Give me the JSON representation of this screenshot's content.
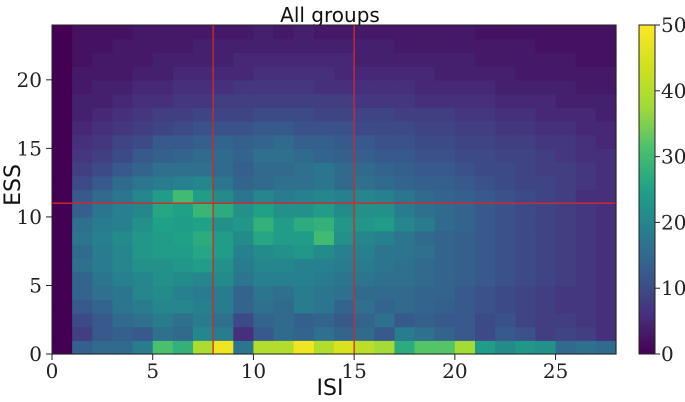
{
  "chart_data": {
    "type": "heatmap",
    "title": "All groups",
    "xlabel": "ISI",
    "ylabel": "ESS",
    "xlim": [
      0,
      28
    ],
    "ylim": [
      0,
      24
    ],
    "x_ticks": [
      "0",
      "5",
      "10",
      "15",
      "20",
      "25"
    ],
    "y_ticks": [
      "0",
      "5",
      "10",
      "15",
      "20"
    ],
    "colorbar": {
      "min": 0,
      "max": 50,
      "ticks": [
        "0",
        "10",
        "20",
        "30",
        "40",
        "50"
      ],
      "colormap": "viridis"
    },
    "reference_lines": {
      "vertical": [
        8,
        15
      ],
      "horizontal": [
        11
      ],
      "color": "#d62728"
    },
    "bin_width_x": 1,
    "bin_width_y": 1,
    "counts": [
      [
        0,
        13,
        15,
        15,
        18,
        31,
        28,
        39,
        48,
        17,
        40,
        40,
        48,
        40,
        45,
        41,
        38,
        27,
        32,
        32,
        38,
        24,
        21,
        23,
        22,
        15,
        16,
        15
      ],
      [
        0,
        8,
        12,
        13,
        12,
        16,
        15,
        20,
        18,
        6,
        12,
        15,
        14,
        16,
        14,
        15,
        12,
        18,
        16,
        14,
        12,
        10,
        12,
        11,
        8,
        9,
        8,
        6
      ],
      [
        0,
        10,
        12,
        15,
        16,
        18,
        16,
        18,
        16,
        10,
        14,
        15,
        13,
        14,
        12,
        14,
        16,
        12,
        13,
        12,
        12,
        10,
        11,
        9,
        8,
        8,
        7,
        6
      ],
      [
        0,
        12,
        14,
        17,
        18,
        20,
        20,
        19,
        18,
        14,
        16,
        15,
        18,
        17,
        14,
        16,
        14,
        15,
        14,
        13,
        12,
        11,
        10,
        9,
        8,
        7,
        7,
        6
      ],
      [
        0,
        14,
        16,
        17,
        20,
        21,
        19,
        18,
        18,
        14,
        17,
        16,
        18,
        17,
        16,
        15,
        15,
        15,
        14,
        14,
        12,
        11,
        10,
        9,
        8,
        7,
        7,
        6
      ],
      [
        0,
        14,
        17,
        19,
        20,
        22,
        21,
        20,
        21,
        17,
        19,
        19,
        19,
        18,
        17,
        17,
        16,
        16,
        15,
        14,
        13,
        12,
        11,
        10,
        9,
        8,
        7,
        6
      ],
      [
        0,
        16,
        18,
        20,
        22,
        22,
        23,
        24,
        22,
        18,
        20,
        20,
        19,
        19,
        18,
        18,
        17,
        16,
        15,
        14,
        13,
        12,
        11,
        10,
        9,
        8,
        7,
        6
      ],
      [
        0,
        15,
        18,
        20,
        23,
        24,
        24,
        26,
        24,
        19,
        21,
        22,
        23,
        21,
        19,
        19,
        17,
        17,
        16,
        14,
        13,
        12,
        11,
        10,
        9,
        8,
        7,
        6
      ],
      [
        0,
        17,
        19,
        21,
        23,
        24,
        25,
        27,
        24,
        21,
        26,
        24,
        24,
        30,
        22,
        20,
        19,
        17,
        15,
        14,
        13,
        12,
        11,
        10,
        9,
        8,
        7,
        6
      ],
      [
        0,
        16,
        18,
        19,
        22,
        25,
        24,
        25,
        22,
        23,
        28,
        24,
        27,
        28,
        23,
        23,
        24,
        20,
        18,
        15,
        14,
        12,
        11,
        10,
        9,
        8,
        7,
        6
      ],
      [
        0,
        13,
        17,
        19,
        20,
        26,
        25,
        29,
        27,
        22,
        25,
        22,
        22,
        24,
        21,
        22,
        22,
        18,
        16,
        15,
        14,
        12,
        11,
        10,
        9,
        8,
        7,
        6
      ],
      [
        0,
        12,
        15,
        17,
        20,
        24,
        30,
        24,
        21,
        17,
        20,
        18,
        19,
        20,
        19,
        20,
        19,
        17,
        15,
        14,
        13,
        12,
        11,
        10,
        9,
        8,
        6,
        6
      ],
      [
        0,
        10,
        12,
        15,
        17,
        18,
        19,
        20,
        17,
        14,
        15,
        16,
        16,
        17,
        15,
        16,
        15,
        14,
        13,
        13,
        12,
        11,
        10,
        9,
        9,
        8,
        7,
        6
      ],
      [
        0,
        8,
        10,
        12,
        14,
        16,
        16,
        16,
        15,
        13,
        15,
        15,
        16,
        17,
        15,
        15,
        14,
        13,
        12,
        12,
        11,
        10,
        10,
        9,
        8,
        8,
        7,
        6
      ],
      [
        0,
        7,
        8,
        10,
        12,
        13,
        14,
        15,
        15,
        14,
        16,
        16,
        15,
        14,
        13,
        13,
        12,
        12,
        11,
        11,
        10,
        10,
        9,
        9,
        8,
        7,
        6,
        6
      ],
      [
        0,
        6,
        7,
        9,
        10,
        12,
        12,
        13,
        14,
        13,
        14,
        15,
        13,
        13,
        12,
        12,
        11,
        11,
        10,
        10,
        9,
        9,
        8,
        8,
        7,
        7,
        6,
        5
      ],
      [
        0,
        5,
        6,
        7,
        8,
        9,
        10,
        11,
        11,
        11,
        12,
        12,
        11,
        11,
        11,
        10,
        10,
        10,
        9,
        9,
        8,
        8,
        7,
        7,
        6,
        6,
        5,
        5
      ],
      [
        0,
        4,
        5,
        6,
        7,
        8,
        8,
        9,
        9,
        9,
        10,
        10,
        10,
        9,
        9,
        9,
        9,
        8,
        8,
        8,
        7,
        7,
        6,
        6,
        5,
        5,
        5,
        4
      ],
      [
        0,
        4,
        4,
        5,
        6,
        6,
        7,
        7,
        8,
        8,
        8,
        8,
        8,
        8,
        8,
        7,
        7,
        7,
        6,
        6,
        6,
        6,
        5,
        5,
        5,
        4,
        4,
        4
      ],
      [
        0,
        3,
        4,
        4,
        5,
        5,
        6,
        6,
        6,
        7,
        7,
        7,
        7,
        6,
        6,
        6,
        6,
        6,
        5,
        5,
        5,
        5,
        4,
        4,
        4,
        4,
        3,
        3
      ],
      [
        0,
        3,
        3,
        3,
        4,
        4,
        5,
        5,
        5,
        5,
        6,
        6,
        6,
        6,
        5,
        5,
        5,
        5,
        5,
        4,
        4,
        4,
        4,
        3,
        3,
        3,
        3,
        3
      ],
      [
        0,
        2,
        3,
        3,
        3,
        4,
        4,
        4,
        4,
        5,
        5,
        5,
        5,
        5,
        5,
        4,
        4,
        4,
        4,
        4,
        4,
        3,
        3,
        3,
        3,
        3,
        2,
        2
      ],
      [
        0,
        2,
        2,
        3,
        3,
        3,
        3,
        4,
        4,
        4,
        4,
        4,
        4,
        4,
        4,
        4,
        4,
        3,
        3,
        3,
        3,
        3,
        3,
        3,
        2,
        2,
        2,
        2
      ],
      [
        0,
        2,
        2,
        2,
        3,
        3,
        3,
        3,
        3,
        3,
        4,
        3,
        4,
        3,
        3,
        3,
        3,
        3,
        3,
        3,
        3,
        2,
        2,
        2,
        2,
        2,
        2,
        2
      ]
    ]
  }
}
